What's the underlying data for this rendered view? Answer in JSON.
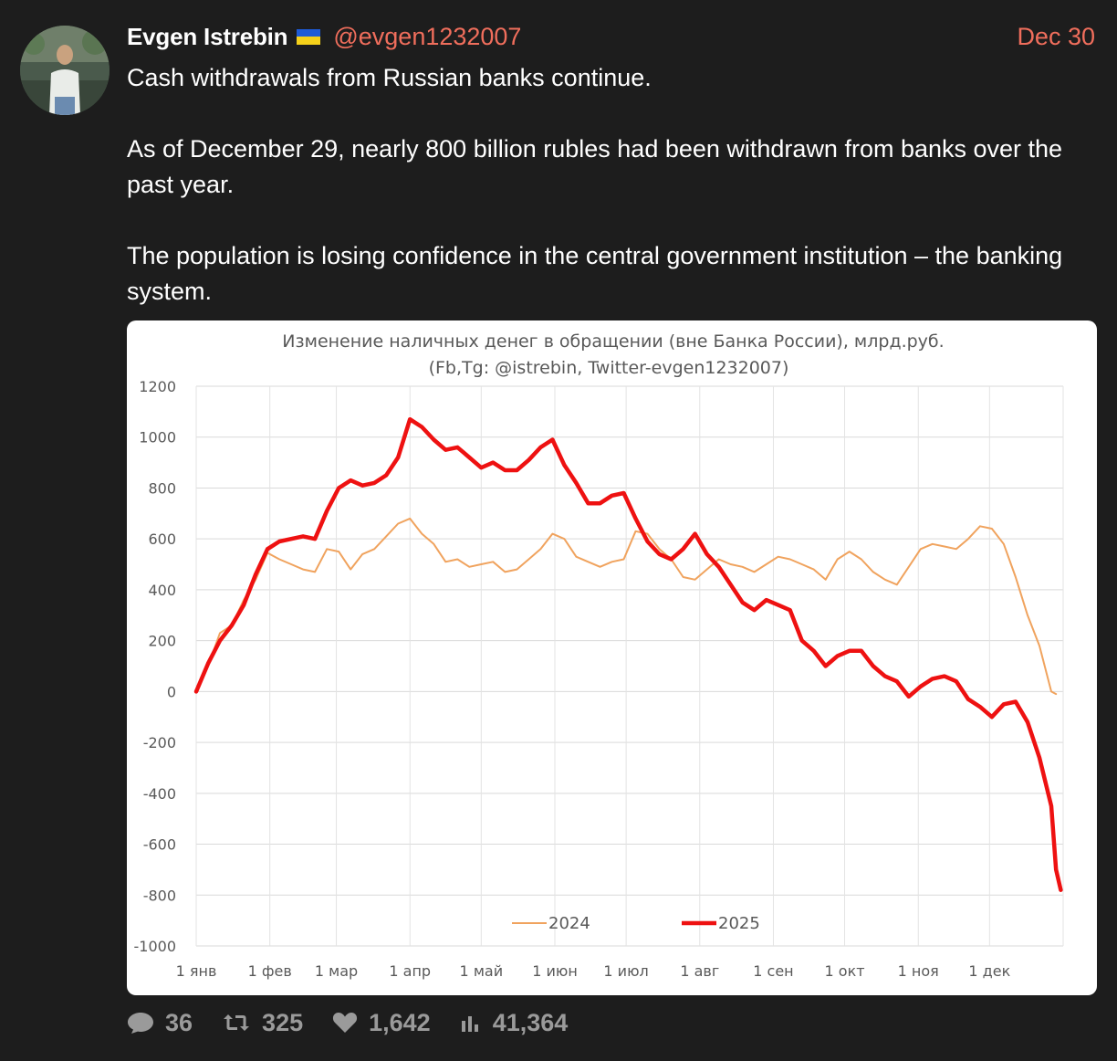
{
  "tweet": {
    "author_name": "Evgen Istrebin",
    "handle": "@evgen1232007",
    "date": "Dec 30",
    "paragraphs": [
      "Cash withdrawals from Russian banks continue.",
      "As of December 29, nearly 800 billion rubles had been withdrawn from banks over the past year.",
      "The population is losing confidence in the central government institution – the banking system."
    ],
    "icons": {
      "avatar": "avatar-photo",
      "flag": "ukraine-flag-icon"
    },
    "colors": {
      "handle": "#f06e5c",
      "background": "#1d1d1d"
    }
  },
  "actions": {
    "replies": "36",
    "retweets": "325",
    "likes": "1,642",
    "views": "41,364"
  },
  "chart_data": {
    "type": "line",
    "title": "Изменение наличных денег в обращении (вне Банка России), млрд.руб.",
    "subtitle": "(Fb,Tg: @istrebin, Twitter-evgen1232007)",
    "xlabel": "",
    "ylabel": "",
    "ylim": [
      -1000,
      1200
    ],
    "y_ticks": [
      1200,
      1000,
      800,
      600,
      400,
      200,
      0,
      -200,
      -400,
      -600,
      -800,
      -1000
    ],
    "x_ticks": [
      "1 янв",
      "1 фев",
      "1 мар",
      "1 апр",
      "1 май",
      "1 июн",
      "1 июл",
      "1 авг",
      "1 сен",
      "1 окт",
      "1 ноя",
      "1 дек"
    ],
    "grid": true,
    "legend_position": "bottom",
    "series": [
      {
        "name": "2024",
        "color": "#f0a35e",
        "points": [
          [
            0,
            0
          ],
          [
            5,
            100
          ],
          [
            10,
            230
          ],
          [
            15,
            260
          ],
          [
            20,
            360
          ],
          [
            25,
            440
          ],
          [
            30,
            545
          ],
          [
            35,
            520
          ],
          [
            40,
            500
          ],
          [
            45,
            480
          ],
          [
            50,
            470
          ],
          [
            55,
            560
          ],
          [
            60,
            550
          ],
          [
            65,
            480
          ],
          [
            70,
            540
          ],
          [
            75,
            560
          ],
          [
            80,
            610
          ],
          [
            85,
            660
          ],
          [
            90,
            680
          ],
          [
            95,
            620
          ],
          [
            100,
            580
          ],
          [
            105,
            510
          ],
          [
            110,
            520
          ],
          [
            115,
            490
          ],
          [
            120,
            500
          ],
          [
            125,
            510
          ],
          [
            130,
            470
          ],
          [
            135,
            480
          ],
          [
            140,
            520
          ],
          [
            145,
            560
          ],
          [
            150,
            620
          ],
          [
            155,
            600
          ],
          [
            160,
            530
          ],
          [
            165,
            510
          ],
          [
            170,
            490
          ],
          [
            175,
            510
          ],
          [
            180,
            520
          ],
          [
            185,
            630
          ],
          [
            190,
            620
          ],
          [
            195,
            560
          ],
          [
            200,
            520
          ],
          [
            205,
            450
          ],
          [
            210,
            440
          ],
          [
            215,
            480
          ],
          [
            220,
            520
          ],
          [
            225,
            500
          ],
          [
            230,
            490
          ],
          [
            235,
            470
          ],
          [
            240,
            500
          ],
          [
            245,
            530
          ],
          [
            250,
            520
          ],
          [
            255,
            500
          ],
          [
            260,
            480
          ],
          [
            265,
            440
          ],
          [
            270,
            520
          ],
          [
            275,
            550
          ],
          [
            280,
            520
          ],
          [
            285,
            470
          ],
          [
            290,
            440
          ],
          [
            295,
            420
          ],
          [
            300,
            490
          ],
          [
            305,
            560
          ],
          [
            310,
            580
          ],
          [
            315,
            570
          ],
          [
            320,
            560
          ],
          [
            325,
            600
          ],
          [
            330,
            650
          ],
          [
            335,
            640
          ],
          [
            340,
            580
          ],
          [
            345,
            450
          ],
          [
            350,
            300
          ],
          [
            355,
            180
          ],
          [
            360,
            0
          ],
          [
            362,
            -10
          ]
        ]
      },
      {
        "name": "2025",
        "color": "#ee1111",
        "points": [
          [
            0,
            0
          ],
          [
            5,
            110
          ],
          [
            10,
            200
          ],
          [
            15,
            260
          ],
          [
            20,
            340
          ],
          [
            25,
            460
          ],
          [
            30,
            560
          ],
          [
            35,
            590
          ],
          [
            40,
            600
          ],
          [
            45,
            610
          ],
          [
            50,
            600
          ],
          [
            55,
            710
          ],
          [
            60,
            800
          ],
          [
            65,
            830
          ],
          [
            70,
            810
          ],
          [
            75,
            820
          ],
          [
            80,
            850
          ],
          [
            85,
            920
          ],
          [
            90,
            1070
          ],
          [
            95,
            1040
          ],
          [
            100,
            990
          ],
          [
            105,
            950
          ],
          [
            110,
            960
          ],
          [
            115,
            920
          ],
          [
            120,
            880
          ],
          [
            125,
            900
          ],
          [
            130,
            870
          ],
          [
            135,
            870
          ],
          [
            140,
            910
          ],
          [
            145,
            960
          ],
          [
            150,
            990
          ],
          [
            155,
            890
          ],
          [
            160,
            820
          ],
          [
            165,
            740
          ],
          [
            170,
            740
          ],
          [
            175,
            770
          ],
          [
            180,
            780
          ],
          [
            185,
            680
          ],
          [
            190,
            590
          ],
          [
            195,
            540
          ],
          [
            200,
            520
          ],
          [
            205,
            560
          ],
          [
            210,
            620
          ],
          [
            215,
            540
          ],
          [
            220,
            490
          ],
          [
            225,
            420
          ],
          [
            230,
            350
          ],
          [
            235,
            320
          ],
          [
            240,
            360
          ],
          [
            245,
            340
          ],
          [
            250,
            320
          ],
          [
            255,
            200
          ],
          [
            260,
            160
          ],
          [
            265,
            100
          ],
          [
            270,
            140
          ],
          [
            275,
            160
          ],
          [
            280,
            160
          ],
          [
            285,
            100
          ],
          [
            290,
            60
          ],
          [
            295,
            40
          ],
          [
            300,
            -20
          ],
          [
            305,
            20
          ],
          [
            310,
            50
          ],
          [
            315,
            60
          ],
          [
            320,
            40
          ],
          [
            325,
            -30
          ],
          [
            330,
            -60
          ],
          [
            335,
            -100
          ],
          [
            340,
            -50
          ],
          [
            345,
            -40
          ],
          [
            350,
            -120
          ],
          [
            355,
            -260
          ],
          [
            360,
            -450
          ],
          [
            362,
            -700
          ],
          [
            364,
            -780
          ]
        ]
      }
    ]
  }
}
